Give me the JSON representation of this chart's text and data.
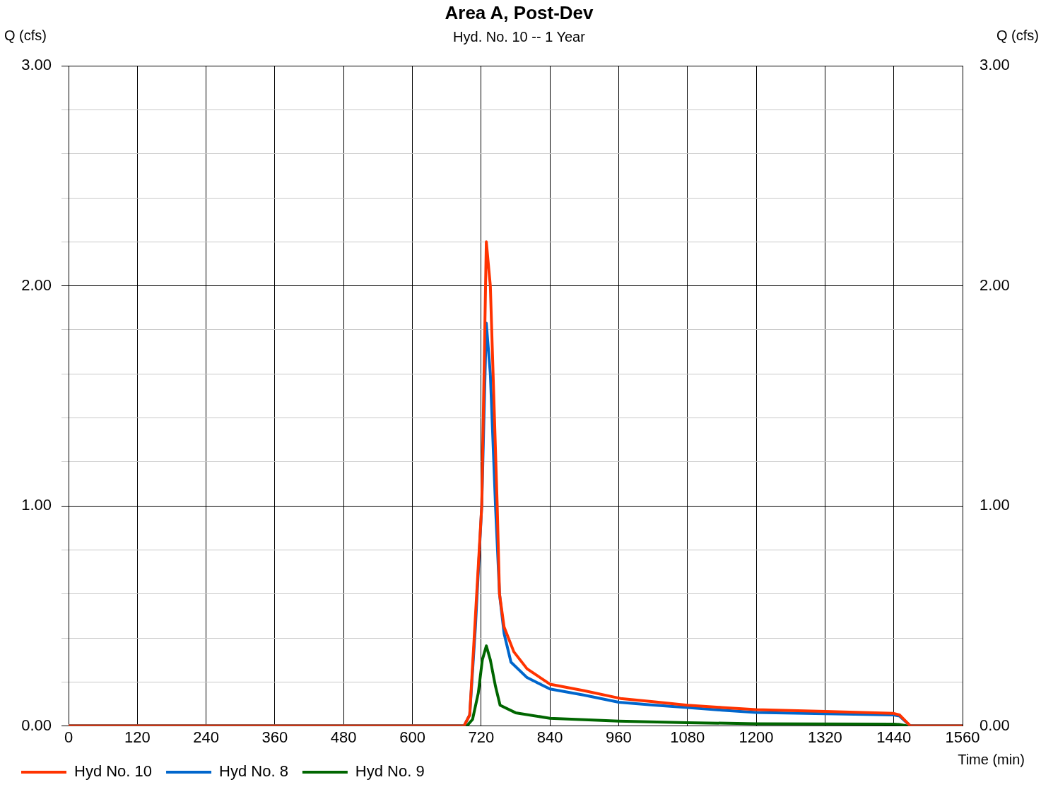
{
  "chart_data": {
    "type": "line",
    "title": "Area A, Post-Dev",
    "subtitle": "Hyd. No. 10 -- 1 Year",
    "xlabel": "Time (min)",
    "ylabel": "Q (cfs)",
    "y2label": "Q (cfs)",
    "xlim": [
      0,
      1560
    ],
    "xticks": [
      0,
      120,
      240,
      360,
      480,
      600,
      720,
      840,
      960,
      1080,
      1200,
      1320,
      1440,
      1560
    ],
    "ylim": [
      0,
      3
    ],
    "yticks": [
      {
        "value": 0,
        "label": "0.00"
      },
      {
        "value": 0.2,
        "label": null
      },
      {
        "value": 0.4,
        "label": null
      },
      {
        "value": 0.6,
        "label": null
      },
      {
        "value": 0.8,
        "label": null
      },
      {
        "value": 1,
        "label": "1.00"
      },
      {
        "value": 1.2,
        "label": null
      },
      {
        "value": 1.4,
        "label": null
      },
      {
        "value": 1.6,
        "label": null
      },
      {
        "value": 1.8,
        "label": null
      },
      {
        "value": 2,
        "label": "2.00"
      },
      {
        "value": 2.2,
        "label": null
      },
      {
        "value": 2.4,
        "label": null
      },
      {
        "value": 2.6,
        "label": null
      },
      {
        "value": 2.8,
        "label": null
      },
      {
        "value": 3,
        "label": "3.00"
      }
    ],
    "y2lim": [
      0,
      3
    ],
    "y2ticks": [
      {
        "value": 0,
        "label": "0.00"
      },
      {
        "value": 1,
        "label": "1.00"
      },
      {
        "value": 2,
        "label": "2.00"
      },
      {
        "value": 3,
        "label": "3.00"
      }
    ],
    "grid": true,
    "legend": "bottom left",
    "marker": "none",
    "line_style": "solid",
    "series": [
      {
        "name": "Hyd No. 10",
        "color": "#ff3300",
        "x": [
          0,
          690,
          700,
          710,
          721,
          729,
          736,
          748,
          752,
          760,
          777,
          800,
          840,
          900,
          963,
          1020,
          1080,
          1140,
          1200,
          1320,
          1440,
          1450,
          1469,
          1560
        ],
        "values": [
          0,
          0,
          0.05,
          0.5,
          1.0,
          2.2,
          2.0,
          1.0,
          0.6,
          0.45,
          0.337,
          0.26,
          0.19,
          0.16,
          0.125,
          0.11,
          0.094,
          0.084,
          0.074,
          0.066,
          0.057,
          0.05,
          0,
          0
        ]
      },
      {
        "name": "Hyd No. 8",
        "color": "#0066cc",
        "x": [
          0,
          690,
          700,
          710,
          721,
          729,
          736,
          745,
          752,
          760,
          772,
          800,
          840,
          900,
          960,
          1020,
          1080,
          1140,
          1200,
          1320,
          1440,
          1450,
          1469,
          1560
        ],
        "values": [
          0,
          0,
          0.05,
          0.45,
          1.0,
          1.83,
          1.6,
          1.0,
          0.6,
          0.42,
          0.29,
          0.22,
          0.168,
          0.14,
          0.108,
          0.095,
          0.084,
          0.072,
          0.061,
          0.056,
          0.05,
          0.045,
          0,
          0
        ]
      },
      {
        "name": "Hyd No. 9",
        "color": "#006600",
        "x": [
          0,
          695,
          705,
          715,
          722,
          729,
          736,
          745,
          753,
          780,
          840,
          960,
          1080,
          1200,
          1440,
          1450,
          1465,
          1560
        ],
        "values": [
          0,
          0,
          0.03,
          0.15,
          0.3,
          0.364,
          0.3,
          0.18,
          0.094,
          0.06,
          0.035,
          0.022,
          0.015,
          0.01,
          0.008,
          0.007,
          0,
          0
        ]
      }
    ]
  }
}
